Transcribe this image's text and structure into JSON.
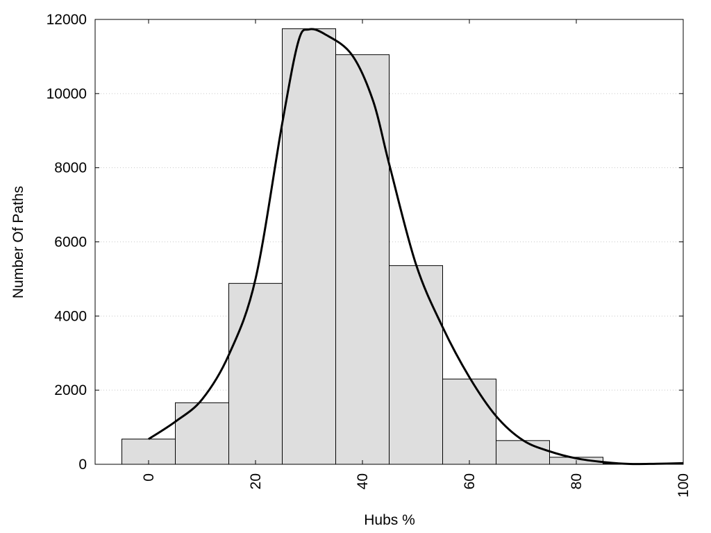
{
  "chart_data": {
    "type": "bar",
    "xlabel": "Hubs %",
    "ylabel": "Number Of Paths",
    "xlim": [
      -10,
      100
    ],
    "ylim": [
      0,
      12000
    ],
    "x_ticks": [
      0,
      20,
      40,
      60,
      80,
      100
    ],
    "y_ticks": [
      0,
      2000,
      4000,
      6000,
      8000,
      10000,
      12000
    ],
    "grid": "horizontal dotted",
    "bin_width": 10,
    "bins": [
      {
        "center": 0,
        "value": 680
      },
      {
        "center": 10,
        "value": 1660
      },
      {
        "center": 20,
        "value": 4880
      },
      {
        "center": 30,
        "value": 11750
      },
      {
        "center": 40,
        "value": 11050
      },
      {
        "center": 50,
        "value": 5360
      },
      {
        "center": 60,
        "value": 2300
      },
      {
        "center": 70,
        "value": 640
      },
      {
        "center": 80,
        "value": 190
      },
      {
        "center": 90,
        "value": 20
      }
    ],
    "fit_curve": {
      "x": [
        0,
        5,
        10,
        15,
        20,
        25,
        28,
        30,
        33,
        38,
        42,
        45,
        50,
        55,
        60,
        65,
        70,
        75,
        80,
        85,
        90,
        95,
        100
      ],
      "y": [
        680,
        1150,
        1750,
        2950,
        5000,
        9200,
        11400,
        11730,
        11600,
        11050,
        9800,
        8100,
        5400,
        3700,
        2350,
        1300,
        650,
        350,
        160,
        60,
        10,
        15,
        30
      ]
    },
    "colors": {
      "bar_fill": "#dedede",
      "bar_stroke": "#000000",
      "curve": "#000000",
      "grid": "#c8c8c8"
    }
  }
}
